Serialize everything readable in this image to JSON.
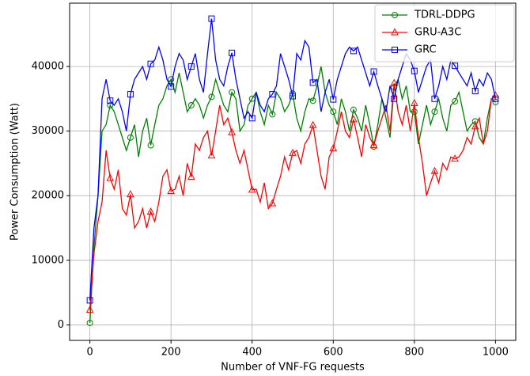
{
  "chart_data": {
    "type": "line",
    "x_label": "Number of VNF-FG requests",
    "y_label": "Power Consumption (Watt)",
    "x": [
      0,
      10,
      20,
      30,
      40,
      50,
      60,
      70,
      80,
      90,
      100,
      110,
      120,
      130,
      140,
      150,
      160,
      170,
      180,
      190,
      200,
      210,
      220,
      230,
      240,
      250,
      260,
      270,
      280,
      290,
      300,
      310,
      320,
      330,
      340,
      350,
      360,
      370,
      380,
      390,
      400,
      410,
      420,
      430,
      440,
      450,
      460,
      470,
      480,
      490,
      500,
      510,
      520,
      530,
      540,
      550,
      560,
      570,
      580,
      590,
      600,
      610,
      620,
      630,
      640,
      650,
      660,
      670,
      680,
      690,
      700,
      710,
      720,
      730,
      740,
      750,
      760,
      770,
      780,
      790,
      800,
      810,
      820,
      830,
      840,
      850,
      860,
      870,
      880,
      890,
      900,
      910,
      920,
      930,
      940,
      950,
      960,
      970,
      980,
      990,
      1000
    ],
    "series": [
      {
        "name": "TDRL-DDPG",
        "color": "#008000",
        "marker": "circle",
        "values": [
          300,
          12000,
          20000,
          30000,
          31000,
          34000,
          33000,
          31000,
          29000,
          27000,
          29000,
          31000,
          26000,
          30000,
          32000,
          27800,
          31000,
          34000,
          35000,
          37000,
          38000,
          36000,
          39000,
          36000,
          33000,
          34000,
          35000,
          34000,
          32000,
          34000,
          35300,
          38000,
          36000,
          34000,
          33000,
          36000,
          35000,
          30000,
          31000,
          34000,
          35000,
          36000,
          33000,
          31000,
          34000,
          32600,
          36000,
          35000,
          33000,
          34000,
          35800,
          32000,
          30000,
          33000,
          35000,
          34700,
          37000,
          40000,
          36000,
          34000,
          33000,
          31000,
          35000,
          33000,
          30000,
          33300,
          32000,
          30000,
          34000,
          31000,
          27600,
          31000,
          35000,
          32000,
          29000,
          36800,
          38000,
          35000,
          37000,
          33000,
          33000,
          28000,
          31000,
          34000,
          31000,
          33000,
          35000,
          32000,
          30000,
          34000,
          34600,
          36000,
          33000,
          30000,
          31000,
          31500,
          29000,
          28000,
          32000,
          35000,
          34500
        ]
      },
      {
        "name": "GRU-A3C",
        "color": "#ff0000",
        "marker": "triangle",
        "values": [
          2300,
          11000,
          16000,
          19000,
          27000,
          22700,
          21000,
          24000,
          18000,
          17000,
          20200,
          15000,
          16000,
          18000,
          15000,
          17500,
          16000,
          19000,
          23000,
          24000,
          20700,
          21000,
          23000,
          20000,
          25000,
          22900,
          28000,
          27000,
          29000,
          30000,
          26200,
          30000,
          34000,
          31000,
          32000,
          29800,
          27000,
          25000,
          27000,
          24000,
          20900,
          21000,
          19000,
          22000,
          18000,
          18800,
          21000,
          23000,
          26000,
          24000,
          26600,
          27000,
          25000,
          28000,
          29000,
          30900,
          27000,
          23000,
          21000,
          26000,
          27300,
          30000,
          33000,
          30000,
          29000,
          31800,
          29000,
          26000,
          31000,
          29000,
          27800,
          30000,
          32000,
          34000,
          30000,
          37400,
          33000,
          31000,
          34000,
          30000,
          34300,
          29000,
          25000,
          20000,
          22000,
          23800,
          22000,
          25000,
          24000,
          26000,
          25700,
          26000,
          27000,
          29000,
          28000,
          30700,
          32000,
          28000,
          30000,
          35000,
          35500
        ]
      },
      {
        "name": "GRC",
        "color": "#0000ff",
        "marker": "square",
        "values": [
          3800,
          15000,
          20000,
          35000,
          38000,
          34700,
          34000,
          35000,
          33000,
          30000,
          35700,
          38000,
          39000,
          40000,
          38000,
          40400,
          41000,
          43000,
          41000,
          38000,
          36900,
          40000,
          42000,
          41000,
          38000,
          40000,
          42000,
          38000,
          36000,
          42000,
          47400,
          41000,
          38000,
          37000,
          40000,
          42100,
          38000,
          35000,
          32000,
          33000,
          32000,
          36000,
          34000,
          33000,
          35000,
          35700,
          37000,
          42000,
          40000,
          38000,
          35400,
          42000,
          41000,
          44000,
          43000,
          37500,
          38000,
          33000,
          36000,
          38000,
          34900,
          38000,
          40000,
          42000,
          43000,
          42400,
          43000,
          41000,
          39000,
          37000,
          39200,
          37000,
          35000,
          33000,
          37000,
          35000,
          38000,
          40000,
          42000,
          41000,
          39300,
          36000,
          38000,
          40000,
          41000,
          35000,
          37000,
          40000,
          38000,
          41000,
          40100,
          39000,
          38000,
          37000,
          39000,
          36200,
          38000,
          37000,
          39000,
          38000,
          35000
        ]
      }
    ],
    "markevery": 5,
    "xlim": [
      -50,
      1050
    ],
    "xticks": [
      0,
      200,
      400,
      600,
      800,
      1000
    ],
    "ylim": [
      -2400,
      49800
    ],
    "yticks": [
      0,
      10000,
      20000,
      30000,
      40000
    ],
    "grid": true,
    "legend": "upper right"
  }
}
